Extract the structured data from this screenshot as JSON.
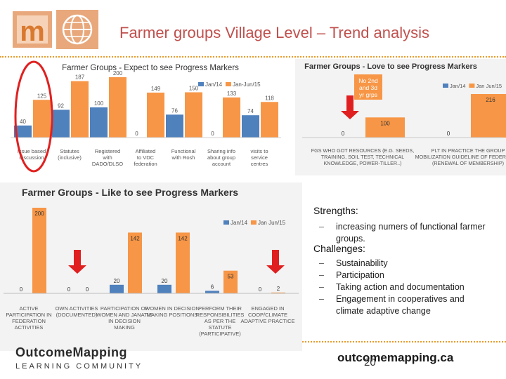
{
  "slide": {
    "title": "Farmer groups Village Level – Trend analysis",
    "page_number": "20",
    "brand_left": "OutcomeMapping",
    "brand_left_sub": "LEARNING   COMMUNITY",
    "brand_right": "outcomemapping.ca",
    "colors": {
      "title": "#c0504d",
      "jan14": "#4f81bd",
      "janjun15": "#f79646",
      "accent_dots": "#e89b2a",
      "arrow": "#e02020",
      "ellipse": "#e02020"
    }
  },
  "strengths": {
    "heading": "Strengths:",
    "items": [
      "increasing numers of functional farmer groups."
    ]
  },
  "challenges": {
    "heading": "Challenges:",
    "items": [
      "Sustainability",
      "Participation",
      "Taking action and documentation",
      "Engagement in cooperatives and climate adaptive change"
    ]
  },
  "callout_text": "No 2nd and 3d yr grps",
  "chart_data": [
    {
      "type": "bar",
      "title": "Farmer Groups - Expect to see Progress Markers",
      "categories": [
        "Issue based discussion",
        "Statutes (inclusive)",
        "Registered with DADO/DLSO",
        "Affiliated to VDC federation",
        "Functional with Rosh",
        "Sharing info about group account",
        "visits to service centres"
      ],
      "series": [
        {
          "name": "Jan/14",
          "values": [
            40,
            92,
            100,
            0,
            76,
            0,
            74
          ]
        },
        {
          "name": "Jan-Jun/15",
          "values": [
            125,
            187,
            200,
            149,
            150,
            133,
            118
          ]
        }
      ],
      "legend": "top-right",
      "grid": false
    },
    {
      "type": "bar",
      "title": "Farmer Groups - Love to see Progress Markers",
      "categories": [
        "FGS WHO GOT RESOURCES (E.G. SEEDS, TRAINING, SOIL TEST, TECHNICAL KNOWLEDGE, POWER-TILLER..)",
        "PLT IN PRACTICE THE GROUP MOBILIZATION GUIDELINE OF FEDERATION (RENEWAL OF MEMBERSHIP)"
      ],
      "series": [
        {
          "name": "Jan/14",
          "values": [
            0,
            0
          ]
        },
        {
          "name": "Jan Jun/15",
          "values": [
            100,
            216
          ]
        }
      ],
      "legend": "top-right",
      "grid": false
    },
    {
      "type": "bar",
      "title": "Farmer Groups - Like to see Progress Markers",
      "categories": [
        "ACTIVE PARTICIPATION IN FEDERATION ACTIVITIES",
        "OWN ACTIVITIES (DOCUMENTED)",
        "PARTICIPATION OF WOMEN AND JANATIS IN DECISION MAKING",
        "WOMEN IN DECISION MAKING POSITIONS",
        "PERFORM THEIR RESPONSIBILITIES AS PER THE STATUTE (PARTICIPATIVE)",
        "ENGAGED IN COOP/CLIMATE ADAPTIVE PRACTICE"
      ],
      "series": [
        {
          "name": "Jan/14",
          "values": [
            0,
            0,
            20,
            20,
            6,
            0
          ]
        },
        {
          "name": "Jan Jun/15",
          "values": [
            200,
            0,
            142,
            142,
            53,
            2
          ]
        }
      ],
      "legend": "top-right",
      "grid": false
    }
  ]
}
